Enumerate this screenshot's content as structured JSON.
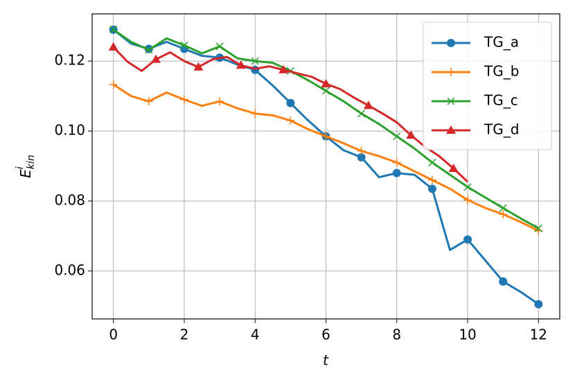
{
  "chart_data": {
    "type": "line",
    "xlabel": "t",
    "ylabel": {
      "base": "E",
      "sup": "i",
      "sub": "kin"
    },
    "xlim": [
      -0.6,
      12.6
    ],
    "ylim": [
      0.0463,
      0.1335
    ],
    "xticks": [
      0,
      2,
      4,
      6,
      8,
      10,
      12
    ],
    "yticks": [
      {
        "value": 0.06,
        "label": "0.06"
      },
      {
        "value": 0.08,
        "label": "0.08"
      },
      {
        "value": 0.1,
        "label": "0.10"
      },
      {
        "value": 0.12,
        "label": "0.12"
      }
    ],
    "grid": true,
    "legend": "upper right",
    "series": [
      {
        "name": "TG_a",
        "color": "#1f77b4",
        "marker": "o",
        "markevery": 2,
        "x": [
          0,
          0.5,
          1,
          1.5,
          2,
          2.5,
          3,
          3.5,
          4,
          4.5,
          5,
          5.5,
          6,
          6.5,
          7,
          7.5,
          8,
          8.5,
          9,
          9.5,
          10,
          10.5,
          11,
          11.5,
          12
        ],
        "values": [
          0.129,
          0.125,
          0.1235,
          0.1255,
          0.1235,
          0.1215,
          0.121,
          0.119,
          0.1175,
          0.113,
          0.108,
          0.103,
          0.0985,
          0.0945,
          0.0925,
          0.0868,
          0.088,
          0.0875,
          0.0835,
          0.066,
          0.069,
          0.063,
          0.057,
          0.054,
          0.0505
        ]
      },
      {
        "name": "TG_b",
        "color": "#ff7f0e",
        "marker": "+",
        "markevery": 2,
        "x": [
          0,
          0.5,
          1,
          1.5,
          2,
          2.5,
          3,
          3.5,
          4,
          4.5,
          5,
          5.5,
          6,
          6.5,
          7,
          7.5,
          8,
          8.5,
          9,
          9.5,
          10,
          10.5,
          11,
          11.5,
          12
        ],
        "values": [
          0.1133,
          0.11,
          0.1085,
          0.111,
          0.109,
          0.1072,
          0.1085,
          0.1065,
          0.105,
          0.1045,
          0.103,
          0.1005,
          0.0985,
          0.0965,
          0.0943,
          0.0928,
          0.091,
          0.0885,
          0.086,
          0.0835,
          0.0803,
          0.078,
          0.0762,
          0.074,
          0.0715
        ]
      },
      {
        "name": "TG_c",
        "color": "#2ca02c",
        "marker": "x",
        "markevery": 2,
        "x": [
          0,
          0.5,
          1,
          1.5,
          2,
          2.5,
          3,
          3.5,
          4,
          4.5,
          5,
          5.5,
          6,
          6.5,
          7,
          7.5,
          8,
          8.5,
          9,
          9.5,
          10,
          10.5,
          11,
          11.5,
          12
        ],
        "values": [
          0.129,
          0.1255,
          0.1232,
          0.1265,
          0.1245,
          0.1222,
          0.1242,
          0.1208,
          0.12,
          0.1195,
          0.1172,
          0.1145,
          0.1115,
          0.1085,
          0.105,
          0.102,
          0.0985,
          0.095,
          0.091,
          0.0875,
          0.084,
          0.081,
          0.078,
          0.075,
          0.0722
        ]
      },
      {
        "name": "TG_d",
        "color": "#d62728",
        "marker": "^",
        "markevery": 3,
        "x": [
          0,
          0.4,
          0.8,
          1.2,
          1.6,
          2,
          2.4,
          2.8,
          3.2,
          3.6,
          4,
          4.4,
          4.8,
          5.2,
          5.6,
          6,
          6.4,
          6.8,
          7.2,
          7.6,
          8,
          8.4,
          8.8,
          9.2,
          9.6,
          10
        ],
        "values": [
          0.124,
          0.1198,
          0.1172,
          0.1205,
          0.1225,
          0.12,
          0.1183,
          0.1205,
          0.1212,
          0.1188,
          0.1178,
          0.1185,
          0.1175,
          0.1165,
          0.1155,
          0.1135,
          0.112,
          0.1095,
          0.1073,
          0.105,
          0.1025,
          0.0988,
          0.0955,
          0.0928,
          0.0893,
          0.0855
        ]
      }
    ]
  }
}
